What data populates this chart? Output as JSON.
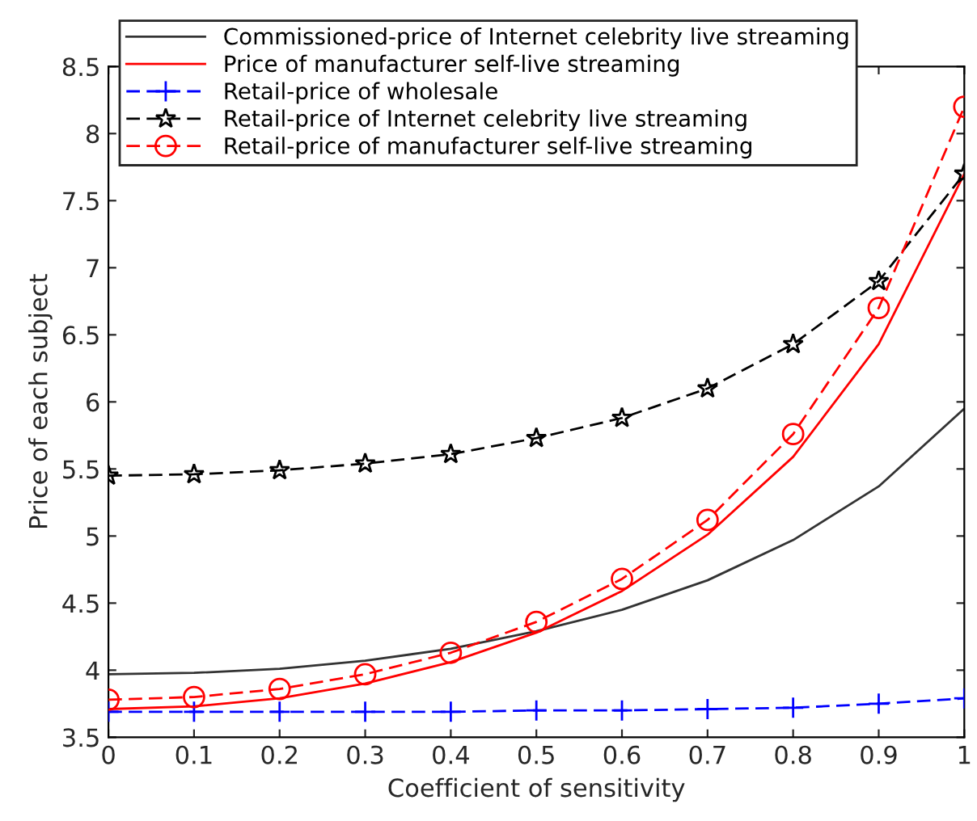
{
  "chart_data": {
    "type": "line",
    "xlabel": "Coefficient of sensitivity",
    "ylabel": "Price of each subject",
    "x": [
      0,
      0.1,
      0.2,
      0.3,
      0.4,
      0.5,
      0.6,
      0.7,
      0.8,
      0.9,
      1
    ],
    "xlim": [
      0,
      1
    ],
    "xticks": [
      0,
      0.1,
      0.2,
      0.3,
      0.4,
      0.5,
      0.6,
      0.7,
      0.8,
      0.9,
      1
    ],
    "ylim": [
      3.5,
      8.5
    ],
    "yticks": [
      3.5,
      4,
      4.5,
      5,
      5.5,
      6,
      6.5,
      7,
      7.5,
      8,
      8.5
    ],
    "grid": false,
    "legend": "top left",
    "series": [
      {
        "name": "Commissioned-price of Internet celebrity live streaming",
        "color": "#333333",
        "line_style": "solid",
        "marker": "none",
        "values": [
          3.97,
          3.98,
          4.01,
          4.07,
          4.16,
          4.29,
          4.45,
          4.67,
          4.97,
          5.37,
          5.95
        ]
      },
      {
        "name": "Price of manufacturer self-live streaming",
        "color": "#ff0000",
        "line_style": "solid",
        "marker": "none",
        "values": [
          3.71,
          3.73,
          3.79,
          3.9,
          4.06,
          4.28,
          4.59,
          5.01,
          5.59,
          6.43,
          7.7
        ]
      },
      {
        "name": "Retail-price of wholesale",
        "color": "#0000ff",
        "line_style": "dashed",
        "marker": "cross",
        "values": [
          3.69,
          3.69,
          3.69,
          3.69,
          3.69,
          3.7,
          3.7,
          3.71,
          3.72,
          3.75,
          3.79
        ]
      },
      {
        "name": "Retail-price of Internet celebrity live streaming",
        "color": "#000000",
        "line_style": "dashed",
        "marker": "star",
        "values": [
          5.45,
          5.46,
          5.49,
          5.54,
          5.61,
          5.73,
          5.88,
          6.1,
          6.43,
          6.9,
          7.7
        ]
      },
      {
        "name": "Retail-price of manufacturer self-live streaming",
        "color": "#ff0000",
        "line_style": "dashed",
        "marker": "circle",
        "values": [
          3.78,
          3.8,
          3.86,
          3.97,
          4.13,
          4.36,
          4.68,
          5.12,
          5.76,
          6.7,
          8.2
        ]
      }
    ]
  }
}
